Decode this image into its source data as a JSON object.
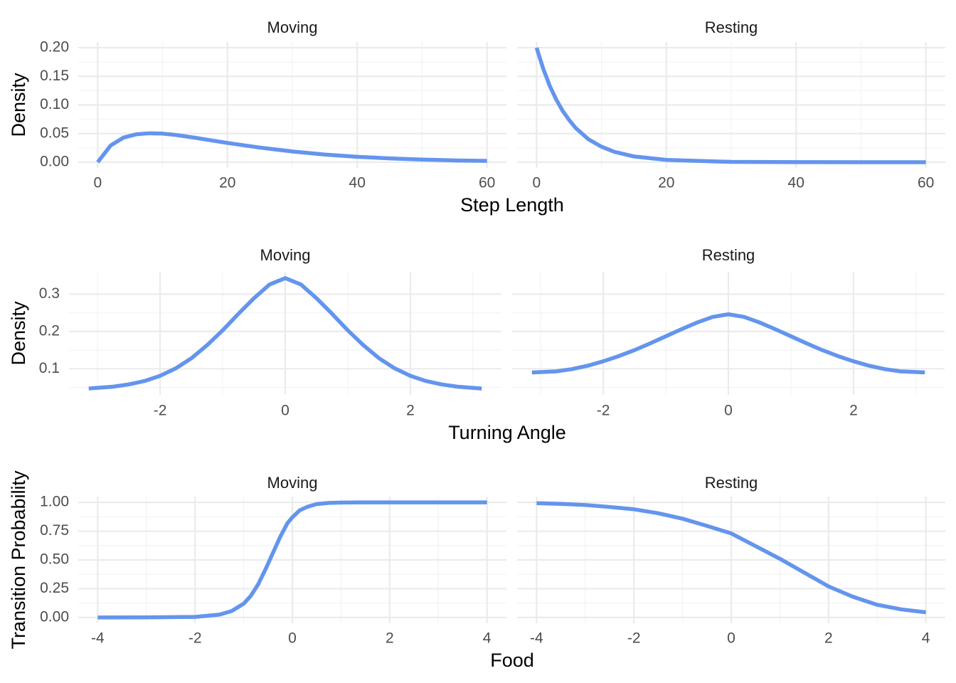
{
  "colors": {
    "line": "#6495ED"
  },
  "chart_data": [
    {
      "type": "line",
      "xlabel": "Step Length",
      "ylabel": "Density",
      "xlim": [
        0,
        60
      ],
      "ylim": [
        0,
        0.2
      ],
      "x_ticks": [
        0,
        20,
        40,
        60
      ],
      "x_tick_labels": [
        "0",
        "20",
        "40",
        "60"
      ],
      "y_ticks": [
        0,
        0.05,
        0.1,
        0.15,
        0.2
      ],
      "y_tick_labels": [
        "0.00",
        "0.05",
        "0.10",
        "0.15",
        "0.20"
      ],
      "grid": true,
      "panels": [
        {
          "strip": "Moving",
          "x": [
            0,
            2,
            4,
            6,
            8,
            10,
            12,
            15,
            20,
            25,
            30,
            35,
            40,
            45,
            50,
            55,
            60
          ],
          "y": [
            0,
            0.0292,
            0.0431,
            0.0488,
            0.0505,
            0.0499,
            0.0476,
            0.0427,
            0.0336,
            0.0255,
            0.0187,
            0.0133,
            0.0094,
            0.0066,
            0.0046,
            0.0031,
            0.0022
          ]
        },
        {
          "strip": "Resting",
          "x": [
            0,
            1,
            2,
            3,
            4,
            5,
            6,
            8,
            10,
            12,
            15,
            20,
            30,
            40,
            50,
            60
          ],
          "y": [
            0.2,
            0.164,
            0.134,
            0.11,
            0.09,
            0.074,
            0.06,
            0.04,
            0.027,
            0.018,
            0.01,
            0.004,
            0.0005,
            0.0001,
            0,
            0
          ]
        }
      ]
    },
    {
      "type": "line",
      "xlabel": "Turning Angle",
      "ylabel": "Density",
      "xlim": [
        -3.1416,
        3.1416
      ],
      "ylim": [
        0.045,
        0.345
      ],
      "x_ticks": [
        -2,
        0,
        2
      ],
      "x_tick_labels": [
        "-2",
        "0",
        "2"
      ],
      "y_ticks": [
        0.1,
        0.2,
        0.3
      ],
      "y_tick_labels": [
        "0.1",
        "0.2",
        "0.3"
      ],
      "grid": true,
      "panels": [
        {
          "strip": "Moving",
          "x": [
            -3.14,
            -2.75,
            -2.5,
            -2.25,
            -2,
            -1.75,
            -1.5,
            -1.25,
            -1,
            -0.75,
            -0.5,
            -0.25,
            0,
            0.25,
            0.5,
            0.75,
            1,
            1.25,
            1.5,
            1.75,
            2,
            2.25,
            2.5,
            2.75,
            3.14
          ],
          "y": [
            0.047,
            0.052,
            0.058,
            0.067,
            0.081,
            0.101,
            0.128,
            0.163,
            0.203,
            0.247,
            0.289,
            0.326,
            0.343,
            0.326,
            0.289,
            0.247,
            0.203,
            0.163,
            0.128,
            0.101,
            0.081,
            0.067,
            0.058,
            0.052,
            0.047
          ]
        },
        {
          "strip": "Resting",
          "x": [
            -3.14,
            -2.75,
            -2.5,
            -2.25,
            -2,
            -1.75,
            -1.5,
            -1.25,
            -1,
            -0.75,
            -0.5,
            -0.25,
            0,
            0.25,
            0.5,
            0.75,
            1,
            1.25,
            1.5,
            1.75,
            2,
            2.25,
            2.5,
            2.75,
            3.14
          ],
          "y": [
            0.09,
            0.093,
            0.099,
            0.108,
            0.12,
            0.134,
            0.15,
            0.168,
            0.187,
            0.206,
            0.224,
            0.239,
            0.246,
            0.239,
            0.224,
            0.206,
            0.187,
            0.168,
            0.15,
            0.134,
            0.12,
            0.108,
            0.099,
            0.093,
            0.09
          ]
        }
      ]
    },
    {
      "type": "line",
      "xlabel": "Food",
      "ylabel": "Transition Probability",
      "xlim": [
        -4,
        4
      ],
      "ylim": [
        0,
        1
      ],
      "x_ticks": [
        -4,
        -2,
        0,
        2,
        4
      ],
      "x_tick_labels": [
        "-4",
        "-2",
        "0",
        "2",
        "4"
      ],
      "y_ticks": [
        0,
        0.25,
        0.5,
        0.75,
        1
      ],
      "y_tick_labels": [
        "0.00",
        "0.25",
        "0.50",
        "0.75",
        "1.00"
      ],
      "grid": true,
      "panels": [
        {
          "strip": "Moving",
          "x": [
            -4,
            -3,
            -2,
            -1.5,
            -1.25,
            -1,
            -0.85,
            -0.7,
            -0.55,
            -0.4,
            -0.25,
            -0.1,
            0,
            0.15,
            0.3,
            0.5,
            0.75,
            1,
            1.5,
            2,
            4
          ],
          "y": [
            0.0002,
            0.0006,
            0.005,
            0.025,
            0.055,
            0.12,
            0.19,
            0.29,
            0.42,
            0.56,
            0.7,
            0.82,
            0.87,
            0.93,
            0.96,
            0.985,
            0.995,
            0.998,
            1,
            1,
            1
          ],
          "strip_note": ""
        },
        {
          "strip": "Resting",
          "x": [
            -4,
            -3.5,
            -3,
            -2.5,
            -2,
            -1.5,
            -1,
            -0.5,
            0,
            0.5,
            1,
            1.5,
            2,
            2.5,
            3,
            3.5,
            4
          ],
          "y": [
            0.993,
            0.987,
            0.977,
            0.96,
            0.94,
            0.905,
            0.858,
            0.796,
            0.73,
            0.62,
            0.51,
            0.39,
            0.27,
            0.18,
            0.11,
            0.07,
            0.045
          ]
        }
      ]
    }
  ]
}
